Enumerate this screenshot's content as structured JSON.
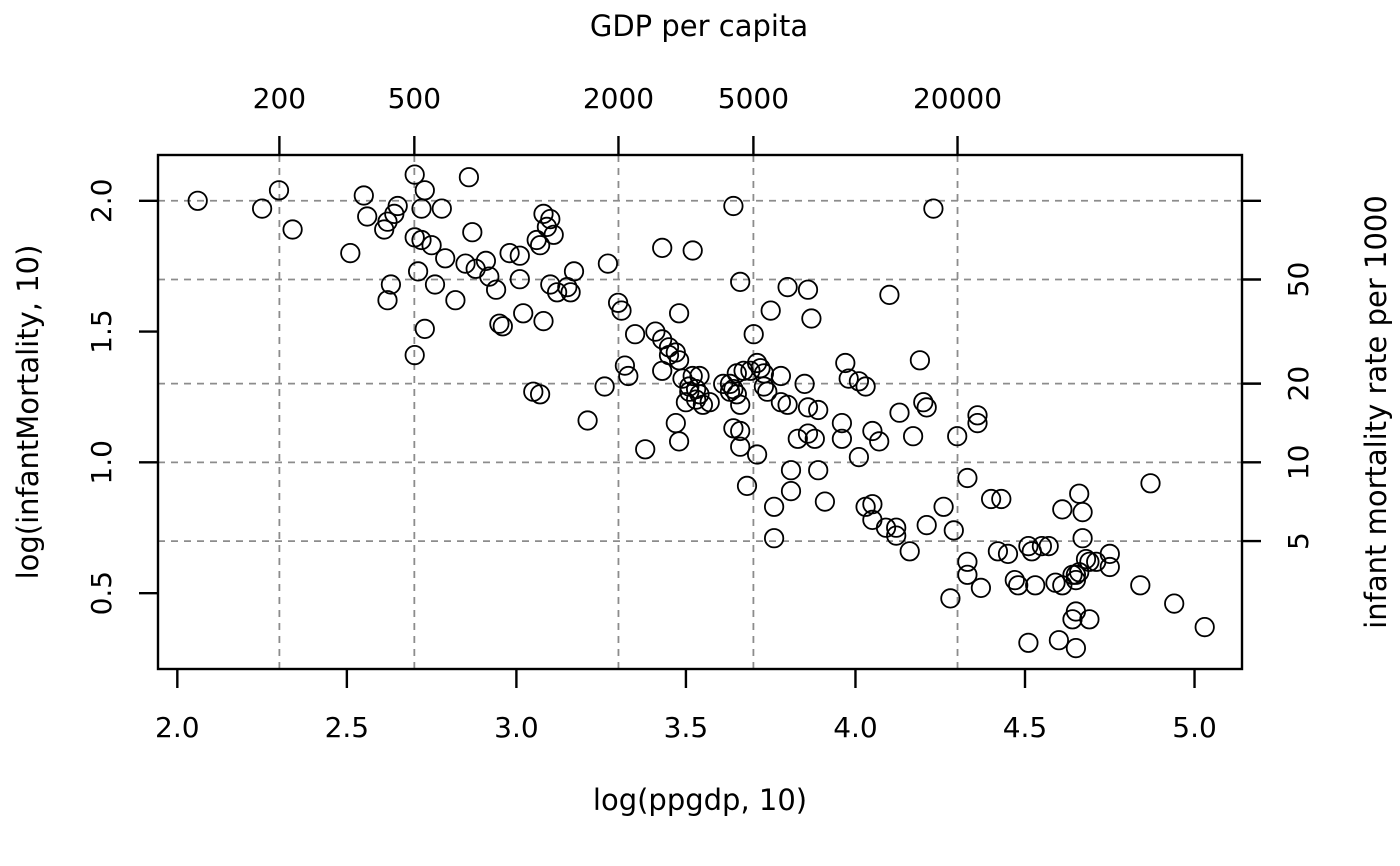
{
  "figure": {
    "background": "#ffffff",
    "text_color": "#000000",
    "grid_color": "#8c8c8c",
    "axis_color": "#000000"
  },
  "chart_data": {
    "type": "scatter",
    "title_top": "GDP per capita",
    "xlabel": "log(ppgdp, 10)",
    "ylabel": "log(infantMortality, 10)",
    "ylabel_right": "infant mortality rate per 1000",
    "xlim": [
      1.943,
      5.14
    ],
    "ylim": [
      0.21,
      2.175
    ],
    "grid": {
      "style": "dashed",
      "x_positions": [
        2.301,
        2.699,
        3.301,
        3.699,
        4.301
      ],
      "y_positions": [
        0.699,
        1.0,
        1.301,
        1.699,
        2.0
      ]
    },
    "x_ticks_bottom": [
      {
        "label": "2.0",
        "value": 2.0
      },
      {
        "label": "2.5",
        "value": 2.5
      },
      {
        "label": "3.0",
        "value": 3.0
      },
      {
        "label": "3.5",
        "value": 3.5
      },
      {
        "label": "4.0",
        "value": 4.0
      },
      {
        "label": "4.5",
        "value": 4.5
      },
      {
        "label": "5.0",
        "value": 5.0
      }
    ],
    "x_ticks_top": [
      {
        "label": "200",
        "value": 2.301
      },
      {
        "label": "500",
        "value": 2.699
      },
      {
        "label": "2000",
        "value": 3.301
      },
      {
        "label": "5000",
        "value": 3.699
      },
      {
        "label": "20000",
        "value": 4.301
      }
    ],
    "y_ticks_left": [
      {
        "label": "0.5",
        "value": 0.5
      },
      {
        "label": "1.0",
        "value": 1.0
      },
      {
        "label": "1.5",
        "value": 1.5
      },
      {
        "label": "2.0",
        "value": 2.0
      }
    ],
    "y_ticks_right": [
      {
        "label": "",
        "value": 2.0
      },
      {
        "label": "50",
        "value": 1.699
      },
      {
        "label": "20",
        "value": 1.301
      },
      {
        "label": "10",
        "value": 1.0
      },
      {
        "label": "5",
        "value": 0.699
      }
    ],
    "marker": {
      "shape": "open-circle",
      "radius": 9.2,
      "stroke": "#000000",
      "fill": "none"
    },
    "points": [
      [
        2.06,
        2.0
      ],
      [
        2.25,
        1.97
      ],
      [
        2.3,
        2.04
      ],
      [
        2.34,
        1.89
      ],
      [
        2.51,
        1.8
      ],
      [
        2.55,
        2.02
      ],
      [
        2.56,
        1.94
      ],
      [
        2.61,
        1.89
      ],
      [
        2.62,
        1.92
      ],
      [
        2.62,
        1.62
      ],
      [
        2.64,
        1.95
      ],
      [
        2.63,
        1.68
      ],
      [
        2.65,
        1.98
      ],
      [
        2.7,
        2.1
      ],
      [
        2.7,
        1.41
      ],
      [
        2.7,
        1.86
      ],
      [
        2.71,
        1.73
      ],
      [
        2.73,
        2.04
      ],
      [
        2.72,
        1.97
      ],
      [
        2.72,
        1.85
      ],
      [
        2.73,
        1.51
      ],
      [
        2.76,
        1.68
      ],
      [
        2.75,
        1.83
      ],
      [
        2.78,
        1.97
      ],
      [
        2.79,
        1.78
      ],
      [
        2.82,
        1.62
      ],
      [
        2.85,
        1.76
      ],
      [
        2.86,
        2.09
      ],
      [
        2.87,
        1.88
      ],
      [
        2.88,
        1.74
      ],
      [
        2.91,
        1.77
      ],
      [
        2.92,
        1.71
      ],
      [
        2.94,
        1.66
      ],
      [
        2.95,
        1.53
      ],
      [
        2.96,
        1.52
      ],
      [
        2.98,
        1.8
      ],
      [
        3.01,
        1.79
      ],
      [
        3.01,
        1.7
      ],
      [
        3.02,
        1.57
      ],
      [
        3.05,
        1.27
      ],
      [
        3.06,
        1.85
      ],
      [
        3.07,
        1.83
      ],
      [
        3.07,
        1.26
      ],
      [
        3.08,
        1.95
      ],
      [
        3.08,
        1.54
      ],
      [
        3.09,
        1.9
      ],
      [
        3.1,
        1.93
      ],
      [
        3.1,
        1.68
      ],
      [
        3.11,
        1.87
      ],
      [
        3.12,
        1.65
      ],
      [
        3.15,
        1.67
      ],
      [
        3.16,
        1.65
      ],
      [
        3.17,
        1.73
      ],
      [
        3.21,
        1.16
      ],
      [
        3.26,
        1.29
      ],
      [
        3.27,
        1.76
      ],
      [
        3.3,
        1.61
      ],
      [
        3.31,
        1.58
      ],
      [
        3.32,
        1.37
      ],
      [
        3.33,
        1.33
      ],
      [
        3.35,
        1.49
      ],
      [
        3.38,
        1.05
      ],
      [
        3.41,
        1.5
      ],
      [
        3.43,
        1.82
      ],
      [
        3.43,
        1.47
      ],
      [
        3.43,
        1.35
      ],
      [
        3.45,
        1.44
      ],
      [
        3.45,
        1.41
      ],
      [
        3.47,
        1.42
      ],
      [
        3.47,
        1.15
      ],
      [
        3.48,
        1.57
      ],
      [
        3.48,
        1.39
      ],
      [
        3.48,
        1.08
      ],
      [
        3.49,
        1.32
      ],
      [
        3.5,
        1.23
      ],
      [
        3.51,
        1.29
      ],
      [
        3.51,
        1.27
      ],
      [
        3.52,
        1.81
      ],
      [
        3.52,
        1.33
      ],
      [
        3.53,
        1.28
      ],
      [
        3.53,
        1.24
      ],
      [
        3.54,
        1.33
      ],
      [
        3.54,
        1.26
      ],
      [
        3.55,
        1.22
      ],
      [
        3.57,
        1.23
      ],
      [
        3.61,
        1.3
      ],
      [
        3.63,
        1.3
      ],
      [
        3.64,
        1.98
      ],
      [
        3.64,
        1.28
      ],
      [
        3.63,
        1.27
      ],
      [
        3.65,
        1.26
      ],
      [
        3.65,
        1.34
      ],
      [
        3.66,
        1.69
      ],
      [
        3.64,
        1.13
      ],
      [
        3.66,
        1.12
      ],
      [
        3.66,
        1.06
      ],
      [
        3.66,
        1.22
      ],
      [
        3.67,
        1.35
      ],
      [
        3.68,
        0.91
      ],
      [
        3.69,
        1.35
      ],
      [
        3.7,
        1.49
      ],
      [
        3.71,
        1.38
      ],
      [
        3.72,
        1.36
      ],
      [
        3.71,
        1.03
      ],
      [
        3.73,
        1.34
      ],
      [
        3.73,
        1.29
      ],
      [
        3.74,
        1.27
      ],
      [
        3.75,
        1.58
      ],
      [
        3.76,
        0.83
      ],
      [
        3.76,
        0.71
      ],
      [
        3.78,
        1.33
      ],
      [
        3.78,
        1.23
      ],
      [
        3.8,
        1.22
      ],
      [
        3.8,
        1.67
      ],
      [
        3.81,
        0.97
      ],
      [
        3.81,
        0.89
      ],
      [
        3.83,
        1.09
      ],
      [
        3.85,
        1.3
      ],
      [
        3.86,
        1.11
      ],
      [
        3.86,
        1.66
      ],
      [
        3.87,
        1.55
      ],
      [
        3.88,
        1.09
      ],
      [
        3.86,
        1.21
      ],
      [
        3.89,
        1.2
      ],
      [
        3.89,
        0.97
      ],
      [
        3.91,
        0.85
      ],
      [
        3.96,
        1.15
      ],
      [
        3.96,
        1.09
      ],
      [
        3.97,
        1.38
      ],
      [
        3.98,
        1.32
      ],
      [
        4.01,
        1.31
      ],
      [
        4.01,
        1.02
      ],
      [
        4.03,
        1.29
      ],
      [
        4.03,
        0.83
      ],
      [
        4.05,
        0.84
      ],
      [
        4.05,
        0.78
      ],
      [
        4.05,
        1.12
      ],
      [
        4.07,
        1.08
      ],
      [
        4.09,
        0.75
      ],
      [
        4.1,
        1.64
      ],
      [
        4.12,
        0.75
      ],
      [
        4.12,
        0.72
      ],
      [
        4.13,
        1.19
      ],
      [
        4.16,
        0.66
      ],
      [
        4.17,
        1.1
      ],
      [
        4.19,
        1.39
      ],
      [
        4.2,
        1.23
      ],
      [
        4.21,
        1.21
      ],
      [
        4.21,
        0.76
      ],
      [
        4.23,
        1.97
      ],
      [
        4.26,
        0.83
      ],
      [
        4.28,
        0.48
      ],
      [
        4.29,
        0.74
      ],
      [
        4.3,
        1.1
      ],
      [
        4.33,
        0.94
      ],
      [
        4.33,
        0.62
      ],
      [
        4.33,
        0.57
      ],
      [
        4.36,
        1.18
      ],
      [
        4.36,
        1.15
      ],
      [
        4.37,
        0.52
      ],
      [
        4.4,
        0.86
      ],
      [
        4.43,
        0.86
      ],
      [
        4.42,
        0.66
      ],
      [
        4.45,
        0.65
      ],
      [
        4.47,
        0.55
      ],
      [
        4.48,
        0.53
      ],
      [
        4.51,
        0.68
      ],
      [
        4.51,
        0.31
      ],
      [
        4.52,
        0.66
      ],
      [
        4.53,
        0.53
      ],
      [
        4.55,
        0.68
      ],
      [
        4.57,
        0.68
      ],
      [
        4.59,
        0.54
      ],
      [
        4.6,
        0.32
      ],
      [
        4.61,
        0.82
      ],
      [
        4.61,
        0.53
      ],
      [
        4.64,
        0.57
      ],
      [
        4.64,
        0.4
      ],
      [
        4.65,
        0.57
      ],
      [
        4.65,
        0.55
      ],
      [
        4.65,
        0.43
      ],
      [
        4.65,
        0.29
      ],
      [
        4.66,
        0.88
      ],
      [
        4.66,
        0.58
      ],
      [
        4.67,
        0.81
      ],
      [
        4.67,
        0.71
      ],
      [
        4.68,
        0.63
      ],
      [
        4.69,
        0.62
      ],
      [
        4.69,
        0.4
      ],
      [
        4.71,
        0.62
      ],
      [
        4.75,
        0.65
      ],
      [
        4.75,
        0.6
      ],
      [
        4.84,
        0.53
      ],
      [
        4.87,
        0.92
      ],
      [
        4.94,
        0.46
      ],
      [
        5.03,
        0.37
      ]
    ]
  }
}
